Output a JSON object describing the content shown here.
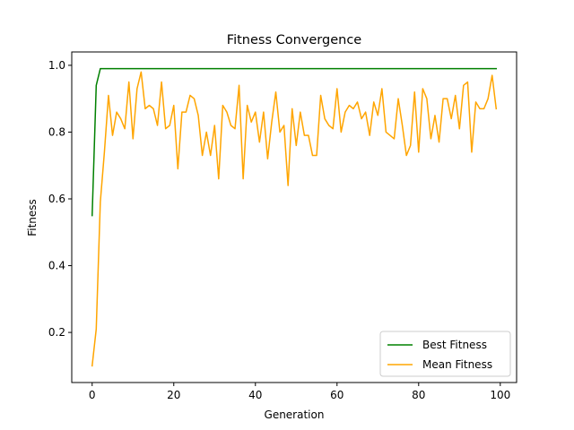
{
  "chart_data": {
    "type": "line",
    "title": "Fitness Convergence",
    "xlabel": "Generation",
    "ylabel": "Fitness",
    "xlim": [
      -5,
      104
    ],
    "ylim": [
      0.05,
      1.04
    ],
    "xticks": [
      0,
      20,
      40,
      60,
      80,
      100
    ],
    "yticks": [
      0.2,
      0.4,
      0.6,
      0.8,
      1.0
    ],
    "xtick_labels": [
      "0",
      "20",
      "40",
      "60",
      "80",
      "100"
    ],
    "ytick_labels": [
      "0.2",
      "0.4",
      "0.6",
      "0.8",
      "1.0"
    ],
    "grid": false,
    "legend": "lower-right",
    "series": [
      {
        "name": "Best Fitness",
        "color": "#008000",
        "x": [
          0,
          1,
          2,
          3,
          4,
          5,
          6,
          7,
          8,
          9,
          10,
          11,
          12,
          13,
          14,
          15,
          16,
          17,
          18,
          19,
          20,
          21,
          22,
          23,
          24,
          25,
          26,
          27,
          28,
          29,
          30,
          31,
          32,
          33,
          34,
          35,
          36,
          37,
          38,
          39,
          40,
          41,
          42,
          43,
          44,
          45,
          46,
          47,
          48,
          49,
          50,
          51,
          52,
          53,
          54,
          55,
          56,
          57,
          58,
          59,
          60,
          61,
          62,
          63,
          64,
          65,
          66,
          67,
          68,
          69,
          70,
          71,
          72,
          73,
          74,
          75,
          76,
          77,
          78,
          79,
          80,
          81,
          82,
          83,
          84,
          85,
          86,
          87,
          88,
          89,
          90,
          91,
          92,
          93,
          94,
          95,
          96,
          97,
          98,
          99
        ],
        "values": [
          0.55,
          0.94,
          0.99,
          0.99,
          0.99,
          0.99,
          0.99,
          0.99,
          0.99,
          0.99,
          0.99,
          0.99,
          0.99,
          0.99,
          0.99,
          0.99,
          0.99,
          0.99,
          0.99,
          0.99,
          0.99,
          0.99,
          0.99,
          0.99,
          0.99,
          0.99,
          0.99,
          0.99,
          0.99,
          0.99,
          0.99,
          0.99,
          0.99,
          0.99,
          0.99,
          0.99,
          0.99,
          0.99,
          0.99,
          0.99,
          0.99,
          0.99,
          0.99,
          0.99,
          0.99,
          0.99,
          0.99,
          0.99,
          0.99,
          0.99,
          0.99,
          0.99,
          0.99,
          0.99,
          0.99,
          0.99,
          0.99,
          0.99,
          0.99,
          0.99,
          0.99,
          0.99,
          0.99,
          0.99,
          0.99,
          0.99,
          0.99,
          0.99,
          0.99,
          0.99,
          0.99,
          0.99,
          0.99,
          0.99,
          0.99,
          0.99,
          0.99,
          0.99,
          0.99,
          0.99,
          0.99,
          0.99,
          0.99,
          0.99,
          0.99,
          0.99,
          0.99,
          0.99,
          0.99,
          0.99,
          0.99,
          0.99,
          0.99,
          0.99,
          0.99,
          0.99,
          0.99,
          0.99,
          0.99,
          0.99
        ]
      },
      {
        "name": "Mean Fitness",
        "color": "#ffa500",
        "x": [
          0,
          1,
          2,
          3,
          4,
          5,
          6,
          7,
          8,
          9,
          10,
          11,
          12,
          13,
          14,
          15,
          16,
          17,
          18,
          19,
          20,
          21,
          22,
          23,
          24,
          25,
          26,
          27,
          28,
          29,
          30,
          31,
          32,
          33,
          34,
          35,
          36,
          37,
          38,
          39,
          40,
          41,
          42,
          43,
          44,
          45,
          46,
          47,
          48,
          49,
          50,
          51,
          52,
          53,
          54,
          55,
          56,
          57,
          58,
          59,
          60,
          61,
          62,
          63,
          64,
          65,
          66,
          67,
          68,
          69,
          70,
          71,
          72,
          73,
          74,
          75,
          76,
          77,
          78,
          79,
          80,
          81,
          82,
          83,
          84,
          85,
          86,
          87,
          88,
          89,
          90,
          91,
          92,
          93,
          94,
          95,
          96,
          97,
          98,
          99
        ],
        "values": [
          0.1,
          0.21,
          0.59,
          0.74,
          0.91,
          0.79,
          0.86,
          0.84,
          0.81,
          0.95,
          0.78,
          0.93,
          0.98,
          0.87,
          0.88,
          0.87,
          0.82,
          0.95,
          0.81,
          0.82,
          0.88,
          0.69,
          0.86,
          0.86,
          0.91,
          0.9,
          0.85,
          0.73,
          0.8,
          0.73,
          0.82,
          0.66,
          0.88,
          0.86,
          0.82,
          0.81,
          0.94,
          0.66,
          0.88,
          0.83,
          0.86,
          0.77,
          0.86,
          0.72,
          0.83,
          0.92,
          0.8,
          0.82,
          0.64,
          0.87,
          0.76,
          0.86,
          0.79,
          0.79,
          0.73,
          0.73,
          0.91,
          0.84,
          0.82,
          0.81,
          0.93,
          0.8,
          0.86,
          0.88,
          0.87,
          0.89,
          0.84,
          0.86,
          0.79,
          0.89,
          0.85,
          0.93,
          0.8,
          0.79,
          0.78,
          0.9,
          0.82,
          0.73,
          0.76,
          0.92,
          0.74,
          0.93,
          0.9,
          0.78,
          0.85,
          0.77,
          0.9,
          0.9,
          0.84,
          0.91,
          0.81,
          0.94,
          0.95,
          0.74,
          0.89,
          0.87,
          0.87,
          0.9,
          0.97,
          0.87
        ]
      }
    ]
  }
}
